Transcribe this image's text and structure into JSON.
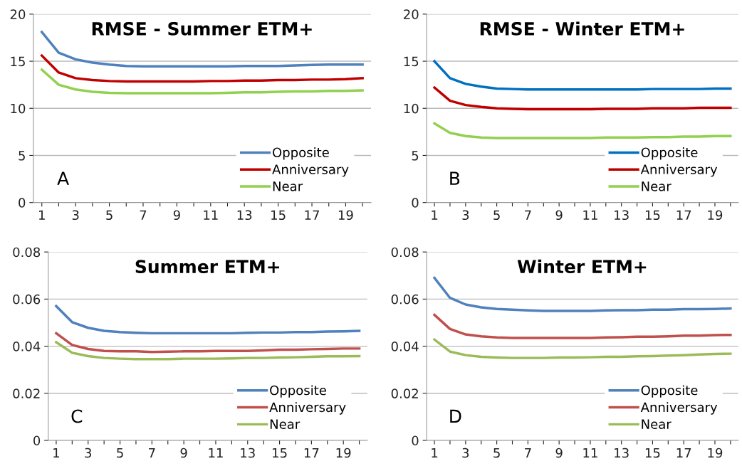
{
  "chart_data": [
    {
      "type": "line",
      "title": "RMSE - Summer ETM+",
      "annotations": [
        "A"
      ],
      "categories": [
        "1",
        null,
        "3",
        null,
        "5",
        null,
        "7",
        null,
        "9",
        null,
        "11",
        null,
        "13",
        null,
        "15",
        null,
        "17",
        null,
        "19",
        null
      ],
      "ylim": [
        0,
        20
      ],
      "yticks": [
        0,
        5,
        10,
        15,
        20
      ],
      "grid": "y",
      "legend": "lower right",
      "marker": "none",
      "line_style": "solid",
      "series": [
        {
          "name": "Opposite",
          "color": "#4f81bd",
          "values": [
            18.1,
            15.9,
            15.2,
            14.85,
            14.65,
            14.5,
            14.45,
            14.45,
            14.45,
            14.45,
            14.45,
            14.45,
            14.5,
            14.5,
            14.5,
            14.55,
            14.6,
            14.65,
            14.65,
            14.65
          ]
        },
        {
          "name": "Anniversary",
          "color": "#c00000",
          "values": [
            15.6,
            13.8,
            13.2,
            13.0,
            12.9,
            12.85,
            12.85,
            12.85,
            12.85,
            12.85,
            12.9,
            12.9,
            12.95,
            12.95,
            13.0,
            13.0,
            13.05,
            13.05,
            13.1,
            13.2
          ]
        },
        {
          "name": "Near",
          "color": "#92d050",
          "values": [
            14.1,
            12.5,
            12.0,
            11.75,
            11.65,
            11.6,
            11.6,
            11.6,
            11.6,
            11.6,
            11.6,
            11.65,
            11.7,
            11.7,
            11.75,
            11.8,
            11.8,
            11.85,
            11.85,
            11.9
          ]
        }
      ]
    },
    {
      "type": "line",
      "title": "RMSE - Winter ETM+",
      "annotations": [
        "B"
      ],
      "categories": [
        "1",
        null,
        "3",
        null,
        "5",
        null,
        "7",
        null,
        "9",
        null,
        "11",
        null,
        "13",
        null,
        "15",
        null,
        "17",
        null,
        "19",
        null
      ],
      "ylim": [
        0,
        20
      ],
      "yticks": [
        0,
        5,
        10,
        15,
        20
      ],
      "grid": "y",
      "legend": "lower right",
      "marker": "none",
      "line_style": "solid",
      "series": [
        {
          "name": "Opposite",
          "color": "#0070c0",
          "values": [
            15.0,
            13.2,
            12.6,
            12.3,
            12.1,
            12.05,
            12.0,
            12.0,
            12.0,
            12.0,
            12.0,
            12.0,
            12.0,
            12.0,
            12.05,
            12.05,
            12.05,
            12.05,
            12.1,
            12.1
          ]
        },
        {
          "name": "Anniversary",
          "color": "#c00000",
          "values": [
            12.2,
            10.8,
            10.35,
            10.15,
            10.0,
            9.95,
            9.9,
            9.9,
            9.9,
            9.9,
            9.9,
            9.95,
            9.95,
            9.95,
            10.0,
            10.0,
            10.0,
            10.05,
            10.05,
            10.05
          ]
        },
        {
          "name": "Near",
          "color": "#92d050",
          "values": [
            8.4,
            7.4,
            7.05,
            6.9,
            6.85,
            6.85,
            6.85,
            6.85,
            6.85,
            6.85,
            6.85,
            6.9,
            6.9,
            6.9,
            6.95,
            6.95,
            7.0,
            7.0,
            7.05,
            7.05
          ]
        }
      ]
    },
    {
      "type": "line",
      "title": "Summer ETM+",
      "annotations": [
        "C"
      ],
      "categories": [
        "1",
        null,
        "3",
        null,
        "5",
        null,
        "7",
        null,
        "9",
        null,
        "11",
        null,
        "13",
        null,
        "15",
        null,
        "17",
        null,
        "19",
        null
      ],
      "ylim": [
        0,
        0.08
      ],
      "yticks": [
        0,
        0.02,
        0.04,
        0.06,
        0.08
      ],
      "grid": "y",
      "legend": "lower right",
      "marker": "none",
      "line_style": "solid",
      "series": [
        {
          "name": "Opposite",
          "color": "#4f81bd",
          "values": [
            0.057,
            0.0502,
            0.0478,
            0.0465,
            0.046,
            0.0457,
            0.0455,
            0.0455,
            0.0455,
            0.0455,
            0.0455,
            0.0455,
            0.0457,
            0.0458,
            0.0458,
            0.046,
            0.046,
            0.0462,
            0.0463,
            0.0465
          ]
        },
        {
          "name": "Anniversary",
          "color": "#c0504d",
          "values": [
            0.0455,
            0.0405,
            0.0388,
            0.038,
            0.0378,
            0.0378,
            0.0375,
            0.0377,
            0.0378,
            0.0378,
            0.038,
            0.038,
            0.038,
            0.0382,
            0.0385,
            0.0385,
            0.0387,
            0.0388,
            0.039,
            0.039
          ]
        },
        {
          "name": "Near",
          "color": "#9bbb59",
          "values": [
            0.0417,
            0.0372,
            0.0358,
            0.035,
            0.0347,
            0.0345,
            0.0345,
            0.0345,
            0.0347,
            0.0347,
            0.0347,
            0.0348,
            0.035,
            0.035,
            0.0352,
            0.0353,
            0.0355,
            0.0357,
            0.0357,
            0.0358
          ]
        }
      ]
    },
    {
      "type": "line",
      "title": "Winter ETM+",
      "annotations": [
        "D"
      ],
      "categories": [
        "1",
        null,
        "3",
        null,
        "5",
        null,
        "7",
        null,
        "9",
        null,
        "11",
        null,
        "13",
        null,
        "15",
        null,
        "17",
        null,
        "19",
        null
      ],
      "ylim": [
        0,
        0.08
      ],
      "yticks": [
        0,
        0.02,
        0.04,
        0.06,
        0.08
      ],
      "grid": "y",
      "legend": "lower right",
      "marker": "none",
      "line_style": "solid",
      "series": [
        {
          "name": "Opposite",
          "color": "#4f81bd",
          "values": [
            0.069,
            0.0605,
            0.0577,
            0.0565,
            0.0558,
            0.0555,
            0.0552,
            0.055,
            0.055,
            0.055,
            0.055,
            0.0552,
            0.0553,
            0.0553,
            0.0555,
            0.0555,
            0.0557,
            0.0557,
            0.0558,
            0.056
          ]
        },
        {
          "name": "Anniversary",
          "color": "#c0504d",
          "values": [
            0.0533,
            0.0473,
            0.045,
            0.0442,
            0.0437,
            0.0435,
            0.0435,
            0.0435,
            0.0435,
            0.0435,
            0.0435,
            0.0437,
            0.0438,
            0.044,
            0.044,
            0.0442,
            0.0445,
            0.0445,
            0.0447,
            0.0448
          ]
        },
        {
          "name": "Near",
          "color": "#9bbb59",
          "values": [
            0.0428,
            0.0377,
            0.0362,
            0.0355,
            0.0352,
            0.035,
            0.035,
            0.035,
            0.0352,
            0.0352,
            0.0353,
            0.0355,
            0.0355,
            0.0357,
            0.0358,
            0.036,
            0.0362,
            0.0365,
            0.0367,
            0.0368
          ]
        }
      ]
    }
  ]
}
